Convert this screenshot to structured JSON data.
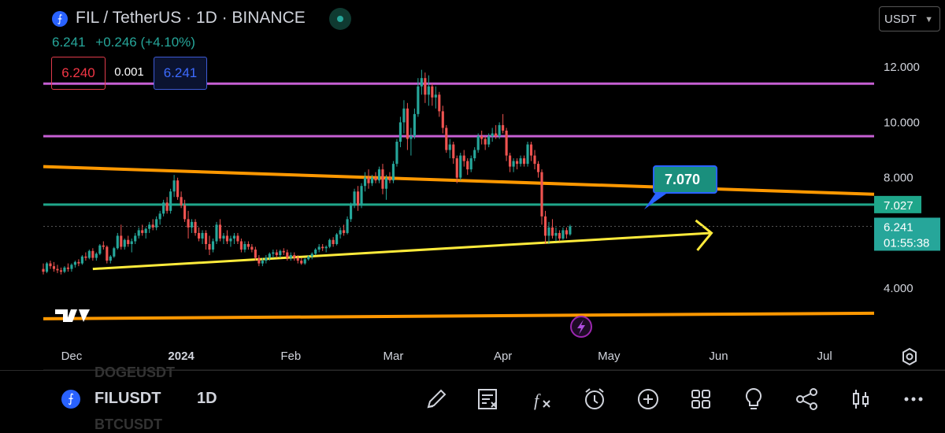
{
  "header": {
    "title": "FIL / TetherUS · 1D · BINANCE",
    "last_price": "6.241",
    "change": "+0.246 (+4.10%)",
    "sell_price": "6.240",
    "spread": "0.001",
    "buy_price": "6.241",
    "currency": "USDT"
  },
  "bottom_bar": {
    "symbol": "FILUSDT",
    "timeframe": "1D",
    "ghost_above": "DOGEUSDT",
    "ghost_below": "BTCUSDT",
    "tools": [
      "pencil-icon",
      "note-icon",
      "function-icon",
      "alarm-icon",
      "add-icon",
      "layout-icon",
      "idea-icon",
      "share-icon",
      "candles-icon",
      "more-icon"
    ]
  },
  "colors": {
    "up": "#26a69a",
    "down": "#ef5350",
    "purple": "#c65fd3",
    "orange": "#ff9800",
    "yellow": "#ffeb3b",
    "green_line": "#1fa68a",
    "accent_blue": "#2962ff"
  },
  "chart_data": {
    "type": "candlestick",
    "symbol": "FIL / TetherUS",
    "interval": "1D",
    "x_labels": [
      "Dec",
      "2024",
      "Feb",
      "Mar",
      "Apr",
      "May",
      "Jun",
      "Jul"
    ],
    "y_ticks": [
      "12.000",
      "10.000",
      "8.000",
      "4.000"
    ],
    "y_tick_values": [
      12,
      10,
      8,
      4
    ],
    "ylim": [
      1.9,
      13.0
    ],
    "xlim": [
      "2023-11-23",
      "2024-07-15"
    ],
    "grid": false,
    "price_axis": "right",
    "last_price_label": "6.241",
    "countdown_label": "01:55:38",
    "horizontal_line_label": "7.027",
    "annotation_label": "7.070",
    "lines": [
      {
        "kind": "horizontal",
        "color": "purple",
        "value": 11.4
      },
      {
        "kind": "horizontal",
        "color": "purple",
        "value": 9.5
      },
      {
        "kind": "horizontal",
        "color": "green",
        "value": 7.027
      },
      {
        "kind": "trend",
        "color": "orange",
        "from": [
          "2023-11-23",
          8.4
        ],
        "to": [
          "2024-07-15",
          7.4
        ]
      },
      {
        "kind": "trend",
        "color": "orange",
        "from": [
          "2023-11-23",
          2.9
        ],
        "to": [
          "2024-07-15",
          3.1
        ]
      },
      {
        "kind": "trend",
        "color": "yellow",
        "from": [
          "2023-12-07",
          4.7
        ],
        "to": [
          "2024-05-30",
          6.0
        ],
        "arrow": true
      }
    ],
    "candles": [
      [
        "2023-11-23",
        4.7,
        4.9,
        4.5,
        4.6
      ],
      [
        "2023-11-24",
        4.6,
        4.95,
        4.55,
        4.9
      ],
      [
        "2023-11-25",
        4.9,
        5.0,
        4.7,
        4.8
      ],
      [
        "2023-11-26",
        4.8,
        4.95,
        4.6,
        4.7
      ],
      [
        "2023-11-27",
        4.7,
        4.85,
        4.55,
        4.65
      ],
      [
        "2023-11-28",
        4.65,
        4.75,
        4.5,
        4.6
      ],
      [
        "2023-11-29",
        4.6,
        4.8,
        4.55,
        4.75
      ],
      [
        "2023-11-30",
        4.75,
        4.9,
        4.6,
        4.7
      ],
      [
        "2023-12-01",
        4.7,
        4.9,
        4.6,
        4.85
      ],
      [
        "2023-12-02",
        4.85,
        5.0,
        4.75,
        4.95
      ],
      [
        "2023-12-03",
        4.95,
        5.05,
        4.8,
        4.9
      ],
      [
        "2023-12-04",
        4.9,
        5.2,
        4.85,
        5.15
      ],
      [
        "2023-12-05",
        5.15,
        5.3,
        5.0,
        5.1
      ],
      [
        "2023-12-06",
        5.1,
        5.4,
        5.05,
        5.35
      ],
      [
        "2023-12-07",
        5.35,
        5.45,
        5.0,
        5.1
      ],
      [
        "2023-12-08",
        5.1,
        5.3,
        5.0,
        5.25
      ],
      [
        "2023-12-09",
        5.25,
        5.6,
        5.2,
        5.55
      ],
      [
        "2023-12-10",
        5.55,
        5.7,
        5.4,
        5.5
      ],
      [
        "2023-12-11",
        5.5,
        5.55,
        4.9,
        5.0
      ],
      [
        "2023-12-12",
        5.0,
        5.2,
        4.9,
        5.15
      ],
      [
        "2023-12-13",
        5.15,
        5.5,
        5.1,
        5.45
      ],
      [
        "2023-12-14",
        5.45,
        6.0,
        5.4,
        5.9
      ],
      [
        "2023-12-15",
        5.9,
        6.3,
        5.4,
        5.5
      ],
      [
        "2023-12-16",
        5.5,
        5.8,
        5.4,
        5.75
      ],
      [
        "2023-12-17",
        5.75,
        5.9,
        5.5,
        5.6
      ],
      [
        "2023-12-18",
        5.6,
        5.8,
        5.3,
        5.7
      ],
      [
        "2023-12-19",
        5.7,
        6.0,
        5.6,
        5.9
      ],
      [
        "2023-12-20",
        5.9,
        6.2,
        5.8,
        6.1
      ],
      [
        "2023-12-21",
        6.1,
        6.3,
        5.9,
        6.0
      ],
      [
        "2023-12-22",
        6.0,
        6.2,
        5.8,
        6.15
      ],
      [
        "2023-12-23",
        6.15,
        6.4,
        6.0,
        6.3
      ],
      [
        "2023-12-24",
        6.3,
        6.5,
        6.1,
        6.2
      ],
      [
        "2023-12-25",
        6.2,
        6.6,
        6.1,
        6.5
      ],
      [
        "2023-12-26",
        6.5,
        6.8,
        6.3,
        6.7
      ],
      [
        "2023-12-27",
        6.7,
        7.2,
        6.6,
        7.1
      ],
      [
        "2023-12-28",
        7.1,
        7.3,
        6.7,
        6.8
      ],
      [
        "2023-12-29",
        6.8,
        7.6,
        6.7,
        7.5
      ],
      [
        "2023-12-30",
        7.5,
        8.1,
        7.3,
        7.9
      ],
      [
        "2023-12-31",
        7.9,
        8.0,
        7.2,
        7.3
      ],
      [
        "2024-01-01",
        7.3,
        7.5,
        6.9,
        7.0
      ],
      [
        "2024-01-02",
        7.0,
        7.2,
        6.4,
        6.5
      ],
      [
        "2024-01-03",
        6.5,
        6.8,
        5.8,
        6.2
      ],
      [
        "2024-01-04",
        6.2,
        6.5,
        6.0,
        6.4
      ],
      [
        "2024-01-05",
        6.4,
        6.5,
        5.9,
        6.0
      ],
      [
        "2024-01-06",
        6.0,
        6.2,
        5.7,
        5.8
      ],
      [
        "2024-01-07",
        5.8,
        6.1,
        5.6,
        6.0
      ],
      [
        "2024-01-08",
        6.0,
        6.1,
        5.4,
        5.6
      ],
      [
        "2024-01-09",
        5.6,
        5.9,
        5.2,
        5.4
      ],
      [
        "2024-01-10",
        5.4,
        5.8,
        5.3,
        5.7
      ],
      [
        "2024-01-11",
        5.7,
        6.4,
        5.6,
        6.3
      ],
      [
        "2024-01-12",
        6.3,
        6.5,
        5.7,
        5.8
      ],
      [
        "2024-01-13",
        5.8,
        6.0,
        5.6,
        5.9
      ],
      [
        "2024-01-14",
        5.9,
        6.1,
        5.6,
        5.7
      ],
      [
        "2024-01-15",
        5.7,
        5.9,
        5.5,
        5.8
      ],
      [
        "2024-01-16",
        5.8,
        6.0,
        5.6,
        5.9
      ],
      [
        "2024-01-17",
        5.9,
        6.0,
        5.6,
        5.7
      ],
      [
        "2024-01-18",
        5.7,
        5.8,
        5.3,
        5.4
      ],
      [
        "2024-01-19",
        5.4,
        5.7,
        5.3,
        5.6
      ],
      [
        "2024-01-20",
        5.6,
        5.7,
        5.4,
        5.5
      ],
      [
        "2024-01-21",
        5.5,
        5.6,
        5.3,
        5.4
      ],
      [
        "2024-01-22",
        5.4,
        5.5,
        5.0,
        5.1
      ],
      [
        "2024-01-23",
        5.1,
        5.2,
        4.8,
        4.9
      ],
      [
        "2024-01-24",
        4.9,
        5.1,
        4.8,
        5.0
      ],
      [
        "2024-01-25",
        5.0,
        5.2,
        4.9,
        5.1
      ],
      [
        "2024-01-26",
        5.1,
        5.3,
        5.0,
        5.25
      ],
      [
        "2024-01-27",
        5.25,
        5.4,
        5.1,
        5.3
      ],
      [
        "2024-01-28",
        5.3,
        5.4,
        5.1,
        5.2
      ],
      [
        "2024-01-29",
        5.2,
        5.4,
        5.1,
        5.35
      ],
      [
        "2024-01-30",
        5.35,
        5.45,
        5.2,
        5.3
      ],
      [
        "2024-01-31",
        5.3,
        5.4,
        5.0,
        5.1
      ],
      [
        "2024-02-01",
        5.1,
        5.3,
        5.0,
        5.2
      ],
      [
        "2024-02-02",
        5.2,
        5.3,
        5.0,
        5.1
      ],
      [
        "2024-02-03",
        5.1,
        5.2,
        4.9,
        5.0
      ],
      [
        "2024-02-04",
        5.0,
        5.1,
        4.85,
        4.9
      ],
      [
        "2024-02-05",
        4.9,
        5.1,
        4.85,
        5.05
      ],
      [
        "2024-02-06",
        5.05,
        5.2,
        5.0,
        5.15
      ],
      [
        "2024-02-07",
        5.15,
        5.3,
        5.05,
        5.25
      ],
      [
        "2024-02-08",
        5.25,
        5.45,
        5.2,
        5.4
      ],
      [
        "2024-02-09",
        5.4,
        5.6,
        5.3,
        5.5
      ],
      [
        "2024-02-10",
        5.5,
        5.6,
        5.35,
        5.45
      ],
      [
        "2024-02-11",
        5.45,
        5.55,
        5.3,
        5.5
      ],
      [
        "2024-02-12",
        5.5,
        5.8,
        5.45,
        5.75
      ],
      [
        "2024-02-13",
        5.75,
        5.85,
        5.5,
        5.6
      ],
      [
        "2024-02-14",
        5.6,
        6.0,
        5.55,
        5.95
      ],
      [
        "2024-02-15",
        5.95,
        6.2,
        5.8,
        6.1
      ],
      [
        "2024-02-16",
        6.1,
        6.3,
        5.9,
        6.0
      ],
      [
        "2024-02-17",
        6.0,
        6.6,
        5.95,
        6.5
      ],
      [
        "2024-02-18",
        6.5,
        7.1,
        6.4,
        7.0
      ],
      [
        "2024-02-19",
        7.0,
        7.6,
        6.9,
        7.5
      ],
      [
        "2024-02-20",
        7.5,
        7.7,
        6.8,
        7.0
      ],
      [
        "2024-02-21",
        7.0,
        7.8,
        6.9,
        7.7
      ],
      [
        "2024-02-22",
        7.7,
        8.2,
        7.5,
        8.0
      ],
      [
        "2024-02-23",
        8.0,
        8.3,
        7.6,
        7.8
      ],
      [
        "2024-02-24",
        7.8,
        8.1,
        7.7,
        8.0
      ],
      [
        "2024-02-25",
        8.0,
        8.2,
        7.8,
        7.9
      ],
      [
        "2024-02-26",
        7.9,
        8.4,
        7.8,
        8.3
      ],
      [
        "2024-02-27",
        8.3,
        8.5,
        7.4,
        7.6
      ],
      [
        "2024-02-28",
        7.6,
        8.1,
        7.2,
        8.0
      ],
      [
        "2024-02-29",
        8.0,
        8.2,
        7.8,
        7.9
      ],
      [
        "2024-03-01",
        7.9,
        8.6,
        7.8,
        8.5
      ],
      [
        "2024-03-02",
        8.5,
        9.4,
        8.4,
        9.3
      ],
      [
        "2024-03-03",
        9.3,
        10.2,
        9.1,
        10.0
      ],
      [
        "2024-03-04",
        10.0,
        10.8,
        9.6,
        10.5
      ],
      [
        "2024-03-05",
        10.5,
        10.7,
        9.0,
        9.4
      ],
      [
        "2024-03-06",
        9.4,
        9.8,
        8.8,
        9.5
      ],
      [
        "2024-03-07",
        9.5,
        10.5,
        9.4,
        10.3
      ],
      [
        "2024-03-08",
        10.3,
        11.6,
        10.2,
        11.3
      ],
      [
        "2024-03-09",
        11.3,
        11.9,
        11.0,
        11.6
      ],
      [
        "2024-03-10",
        11.6,
        11.8,
        10.7,
        11.0
      ],
      [
        "2024-03-11",
        11.0,
        11.7,
        10.6,
        11.3
      ],
      [
        "2024-03-12",
        11.3,
        11.4,
        10.6,
        10.9
      ],
      [
        "2024-03-13",
        10.9,
        11.3,
        10.5,
        11.0
      ],
      [
        "2024-03-14",
        11.0,
        11.1,
        10.2,
        10.4
      ],
      [
        "2024-03-15",
        10.4,
        10.6,
        9.6,
        9.8
      ],
      [
        "2024-03-16",
        9.8,
        9.9,
        8.9,
        9.0
      ],
      [
        "2024-03-17",
        9.0,
        9.4,
        8.7,
        9.2
      ],
      [
        "2024-03-18",
        9.2,
        9.3,
        8.5,
        8.7
      ],
      [
        "2024-03-19",
        8.7,
        8.8,
        7.8,
        8.0
      ],
      [
        "2024-03-20",
        8.0,
        8.9,
        7.9,
        8.8
      ],
      [
        "2024-03-21",
        8.8,
        9.0,
        8.4,
        8.6
      ],
      [
        "2024-03-22",
        8.6,
        8.7,
        8.1,
        8.3
      ],
      [
        "2024-03-23",
        8.3,
        8.8,
        8.2,
        8.7
      ],
      [
        "2024-03-24",
        8.7,
        9.1,
        8.6,
        9.0
      ],
      [
        "2024-03-25",
        9.0,
        9.6,
        8.9,
        9.5
      ],
      [
        "2024-03-26",
        9.5,
        9.7,
        9.2,
        9.4
      ],
      [
        "2024-03-27",
        9.4,
        9.5,
        9.0,
        9.2
      ],
      [
        "2024-03-28",
        9.2,
        9.6,
        9.1,
        9.5
      ],
      [
        "2024-03-29",
        9.5,
        9.8,
        9.3,
        9.6
      ],
      [
        "2024-03-30",
        9.6,
        9.9,
        9.4,
        9.5
      ],
      [
        "2024-03-31",
        9.5,
        10.0,
        9.4,
        9.9
      ],
      [
        "2024-04-01",
        9.9,
        10.3,
        9.6,
        9.7
      ],
      [
        "2024-04-02",
        9.7,
        9.8,
        8.6,
        8.8
      ],
      [
        "2024-04-03",
        8.8,
        8.9,
        8.2,
        8.4
      ],
      [
        "2024-04-04",
        8.4,
        8.7,
        8.2,
        8.6
      ],
      [
        "2024-04-05",
        8.6,
        8.7,
        8.3,
        8.5
      ],
      [
        "2024-04-06",
        8.5,
        8.8,
        8.4,
        8.7
      ],
      [
        "2024-04-07",
        8.7,
        8.8,
        8.4,
        8.5
      ],
      [
        "2024-04-08",
        8.5,
        9.3,
        8.4,
        9.2
      ],
      [
        "2024-04-09",
        9.2,
        9.3,
        8.6,
        8.8
      ],
      [
        "2024-04-10",
        8.8,
        9.0,
        8.3,
        8.5
      ],
      [
        "2024-04-11",
        8.5,
        8.6,
        8.0,
        8.2
      ],
      [
        "2024-04-12",
        8.2,
        8.3,
        6.3,
        6.6
      ],
      [
        "2024-04-13",
        6.6,
        6.8,
        5.6,
        5.9
      ],
      [
        "2024-04-14",
        5.9,
        6.4,
        5.6,
        6.2
      ],
      [
        "2024-04-15",
        6.2,
        6.5,
        5.8,
        5.9
      ],
      [
        "2024-04-16",
        5.9,
        6.2,
        5.7,
        6.0
      ],
      [
        "2024-04-17",
        6.0,
        6.1,
        5.7,
        5.8
      ],
      [
        "2024-04-18",
        5.8,
        6.2,
        5.75,
        6.1
      ],
      [
        "2024-04-19",
        6.1,
        6.2,
        5.8,
        5.95
      ],
      [
        "2024-04-20",
        5.95,
        6.3,
        5.9,
        6.241
      ]
    ]
  }
}
